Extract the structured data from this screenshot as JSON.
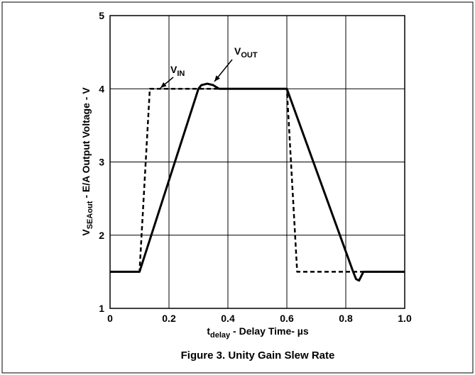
{
  "chart_data": {
    "type": "line",
    "title": "Figure 3. Unity Gain Slew Rate",
    "xlabel": {
      "main": "t",
      "sub": "delay",
      "rest": " - Delay Time- µs"
    },
    "ylabel": {
      "main": "V",
      "sub": "SEAout",
      "rest": " - E/A Output Voltage - V"
    },
    "xlim": [
      0,
      1
    ],
    "xticks": [
      0,
      0.2,
      0.4,
      0.6,
      0.8,
      {
        "value": 1,
        "label": "1.0"
      }
    ],
    "ylim": [
      1,
      5
    ],
    "yticks": [
      1,
      2,
      3,
      4,
      5
    ],
    "grid": true,
    "series": [
      {
        "name": "VIN",
        "color": "#000000",
        "style": "dashed",
        "x": [
          0,
          0.1,
          0.135,
          0.6,
          0.635,
          1.0
        ],
        "values": [
          1.5,
          1.5,
          4,
          4,
          1.5,
          1.5
        ]
      },
      {
        "name": "VOUT",
        "color": "#000000",
        "style": "solid",
        "x": [
          0,
          0.1,
          0.3,
          0.31,
          0.33,
          0.35,
          0.37,
          0.6,
          0.825,
          0.835,
          0.845,
          0.86,
          1.0
        ],
        "values": [
          1.5,
          1.5,
          4,
          4.05,
          4.07,
          4.05,
          4,
          4,
          1.5,
          1.4,
          1.38,
          1.5,
          1.5
        ]
      }
    ],
    "annotations": [
      {
        "main": "V",
        "sub": "IN"
      },
      {
        "main": "V",
        "sub": "OUT"
      }
    ]
  }
}
